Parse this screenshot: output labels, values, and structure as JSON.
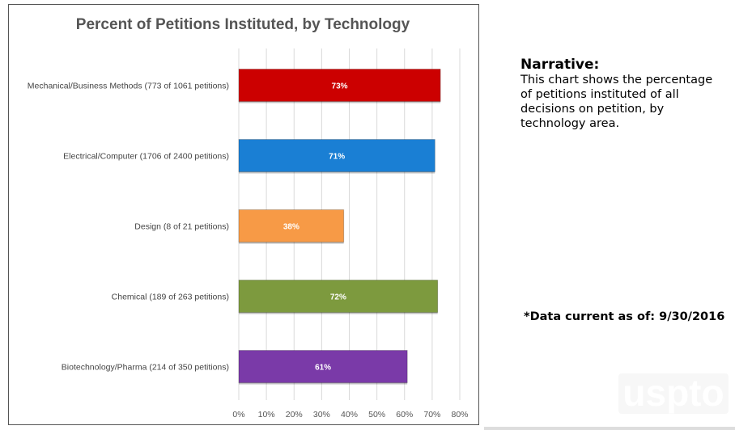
{
  "chart_data": {
    "type": "bar",
    "orientation": "horizontal",
    "title": "Percent of Petitions Instituted, by Technology",
    "categories": [
      "Mechanical/Business Methods (773 of 1061 petitions)",
      "Electrical/Computer (1706 of 2400 petitions)",
      "Design (8 of 21 petitions)",
      "Chemical (189 of 263 petitions)",
      "Biotechnology/Pharma (214 of 350 petitions)"
    ],
    "values": [
      73,
      71,
      38,
      72,
      61
    ],
    "data_labels": [
      "73%",
      "71%",
      "38%",
      "72%",
      "61%"
    ],
    "colors": [
      "#cc0000",
      "#1a7fd4",
      "#f79a46",
      "#7d9a3e",
      "#7a3aa8"
    ],
    "xlim": [
      0,
      80
    ],
    "xticks": [
      "0%",
      "10%",
      "20%",
      "30%",
      "40%",
      "50%",
      "60%",
      "70%",
      "80%"
    ],
    "grid": true
  },
  "narrative": {
    "heading": "Narrative:",
    "body": "This chart shows the percentage of petitions instituted of all decisions on petition, by technology area."
  },
  "as_of": "*Data current as of: 9/30/2016",
  "logo": "uspto"
}
